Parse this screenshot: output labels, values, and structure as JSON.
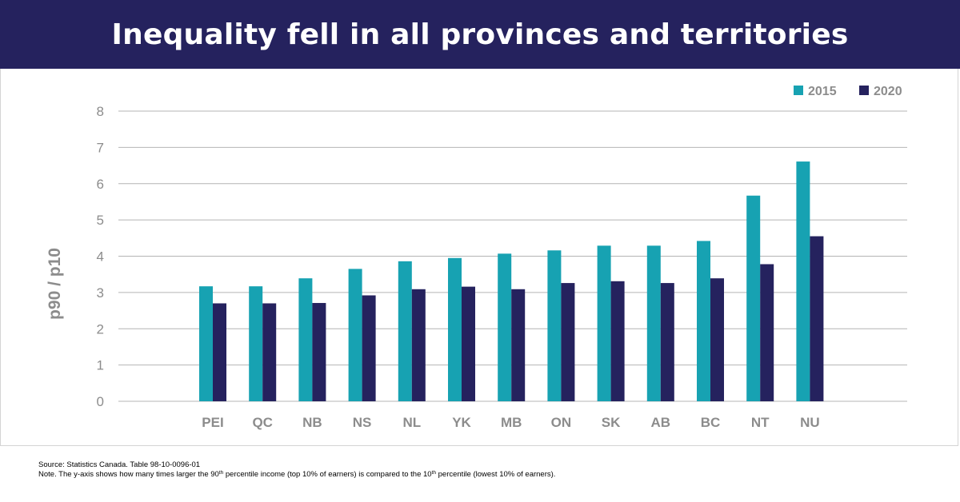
{
  "title": "Inequality fell in all provinces and territories",
  "colors": {
    "banner": "#25225e",
    "series_2015": "#17a2b2",
    "series_2020": "#25225e",
    "grid": "#b4b4b4",
    "axis_text": "#8c8c8c"
  },
  "chart_data": {
    "type": "bar",
    "title": "Inequality fell in all provinces and territories",
    "xlabel": "",
    "ylabel": "p90 / p10",
    "ylim": [
      0,
      8
    ],
    "yticks": [
      "0",
      "1",
      "2",
      "3",
      "4",
      "5",
      "6",
      "7",
      "8"
    ],
    "grid": true,
    "legend_position": "top-right",
    "categories": [
      "PEI",
      "QC",
      "NB",
      "NS",
      "NL",
      "YK",
      "MB",
      "ON",
      "SK",
      "AB",
      "BC",
      "NT",
      "NU"
    ],
    "series": [
      {
        "name": "2015",
        "color": "#17a2b2",
        "values": [
          3.17,
          3.17,
          3.39,
          3.65,
          3.86,
          3.95,
          4.07,
          4.16,
          4.29,
          4.29,
          4.42,
          5.67,
          6.61
        ]
      },
      {
        "name": "2020",
        "color": "#25225e",
        "values": [
          2.7,
          2.7,
          2.71,
          2.92,
          3.09,
          3.16,
          3.09,
          3.26,
          3.31,
          3.26,
          3.39,
          3.78,
          4.55
        ]
      }
    ]
  },
  "footnotes": {
    "source": "Source: Statistics Canada. Table 98-10-0096-01",
    "note_prefix": "Note. The y-axis shows how many times larger the 90",
    "sup1": "th",
    "note_middle": " percentile income (top 10% of earners) is compared to the 10",
    "sup2": "th",
    "note_suffix": " percentile (lowest 10% of earners)."
  }
}
